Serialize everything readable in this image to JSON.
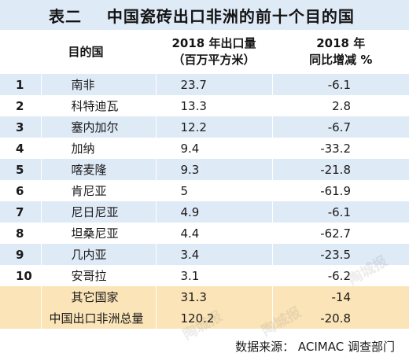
{
  "title": "表二    中国瓷砖出口非洲的前十个目的国",
  "header": {
    "col_rank": "",
    "col_country": "目的国",
    "col_volume_line1": "2018 年出口量",
    "col_volume_line2": "（百万平方米）",
    "col_change_line1": "2018 年",
    "col_change_line2": "同比增减 %"
  },
  "rows": [
    {
      "rank": "1",
      "country": "南非",
      "volume": "23.7",
      "change": "-6.1"
    },
    {
      "rank": "2",
      "country": "科特迪瓦",
      "volume": "13.3",
      "change": "2.8"
    },
    {
      "rank": "3",
      "country": "塞内加尔",
      "volume": "12.2",
      "change": "-6.7"
    },
    {
      "rank": "4",
      "country": "加纳",
      "volume": "9.4",
      "change": "-33.2"
    },
    {
      "rank": "5",
      "country": "喀麦隆",
      "volume": "9.3",
      "change": "-21.8"
    },
    {
      "rank": "6",
      "country": "肯尼亚",
      "volume": "5",
      "change": "-61.9"
    },
    {
      "rank": "7",
      "country": "尼日尼亚",
      "volume": "4.9",
      "change": "-6.1"
    },
    {
      "rank": "8",
      "country": "坦桑尼亚",
      "volume": "4.4",
      "change": "-62.7"
    },
    {
      "rank": "9",
      "country": "几内亚",
      "volume": "3.4",
      "change": "-23.5"
    },
    {
      "rank": "10",
      "country": "安哥拉",
      "volume": "3.1",
      "change": "-6.2"
    }
  ],
  "summary": [
    {
      "label": "其它国家",
      "volume": "31.3",
      "change": "-14"
    },
    {
      "label": "中国出口非洲总量",
      "volume": "120.2",
      "change": "-20.8"
    }
  ],
  "source": "数据来源：  ACIMAC 调查部门",
  "watermark": "陶城报",
  "colors": {
    "band": "#dfeaf7",
    "summary": "#fbe4b7"
  }
}
